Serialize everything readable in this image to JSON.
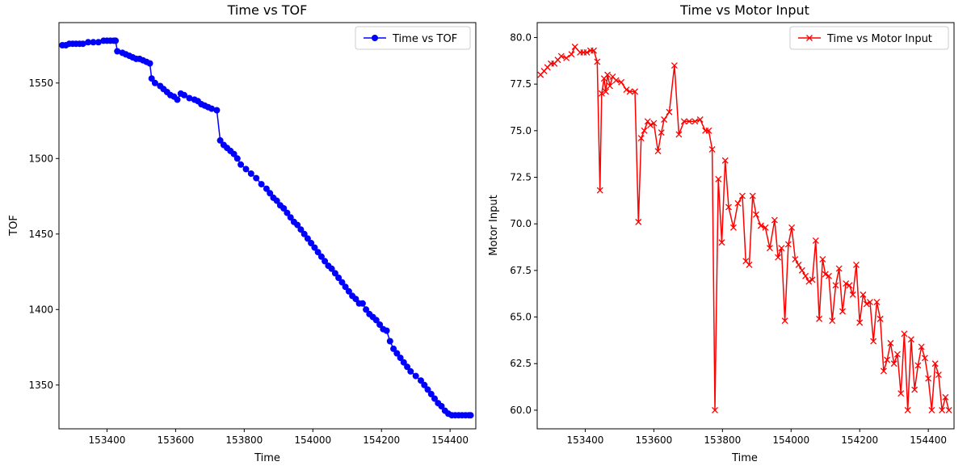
{
  "chart_data": [
    {
      "type": "line",
      "title": "Time vs TOF",
      "xlabel": "Time",
      "ylabel": "TOF",
      "xlim": [
        153260,
        154475
      ],
      "ylim": [
        1321,
        1590
      ],
      "xticks": [
        153400,
        153600,
        153800,
        154000,
        154200,
        154400
      ],
      "yticks": [
        1350,
        1400,
        1450,
        1500,
        1550
      ],
      "ytick_labels": [
        "1350",
        "1400",
        "1450",
        "1500",
        "1550"
      ],
      "grid": false,
      "legend_position": "top-right",
      "series": [
        {
          "name": "Time vs TOF",
          "color": "#0000ff",
          "marker": "circle",
          "x": [
            153270,
            153280,
            153290,
            153300,
            153310,
            153320,
            153330,
            153345,
            153360,
            153375,
            153390,
            153400,
            153410,
            153420,
            153425,
            153430,
            153445,
            153455,
            153465,
            153475,
            153485,
            153495,
            153505,
            153515,
            153525,
            153530,
            153540,
            153555,
            153565,
            153575,
            153585,
            153595,
            153605,
            153615,
            153625,
            153640,
            153655,
            153665,
            153675,
            153685,
            153695,
            153705,
            153720,
            153730,
            153740,
            153750,
            153760,
            153770,
            153780,
            153790,
            153805,
            153820,
            153835,
            153850,
            153865,
            153875,
            153885,
            153895,
            153905,
            153915,
            153925,
            153935,
            153945,
            153955,
            153965,
            153975,
            153985,
            153995,
            154005,
            154015,
            154025,
            154035,
            154045,
            154055,
            154065,
            154075,
            154085,
            154095,
            154105,
            154115,
            154125,
            154135,
            154145,
            154155,
            154165,
            154175,
            154185,
            154195,
            154205,
            154215,
            154225,
            154235,
            154245,
            154255,
            154265,
            154275,
            154285,
            154300,
            154315,
            154325,
            154335,
            154345,
            154355,
            154365,
            154375,
            154385,
            154395,
            154405,
            154415,
            154425,
            154435,
            154445,
            154455,
            154460
          ],
          "y": [
            1575,
            1575,
            1576,
            1576,
            1576,
            1576,
            1576,
            1577,
            1577,
            1577,
            1578,
            1578,
            1578,
            1578,
            1578,
            1571,
            1570,
            1569,
            1568,
            1567,
            1566,
            1566,
            1565,
            1564,
            1563,
            1553,
            1550,
            1548,
            1546,
            1544,
            1542,
            1541,
            1539,
            1543,
            1542,
            1540,
            1539,
            1538,
            1536,
            1535,
            1534,
            1533,
            1532,
            1512,
            1509,
            1507,
            1505,
            1503,
            1500,
            1496,
            1493,
            1490,
            1487,
            1483,
            1480,
            1477,
            1474,
            1472,
            1469,
            1467,
            1464,
            1461,
            1458,
            1456,
            1453,
            1450,
            1447,
            1444,
            1441,
            1438,
            1435,
            1432,
            1429,
            1427,
            1424,
            1421,
            1418,
            1415,
            1412,
            1409,
            1407,
            1404,
            1404,
            1400,
            1397,
            1395,
            1393,
            1390,
            1387,
            1386,
            1379,
            1374,
            1371,
            1368,
            1365,
            1362,
            1359,
            1356,
            1353,
            1350,
            1347,
            1344,
            1341,
            1338,
            1336,
            1333,
            1331,
            1330,
            1330,
            1330,
            1330,
            1330,
            1330,
            1330
          ]
        }
      ]
    },
    {
      "type": "line",
      "title": "Time vs Motor Input",
      "xlabel": "Time",
      "ylabel": "Motor Input",
      "xlim": [
        153260,
        154475
      ],
      "ylim": [
        59.0,
        80.8
      ],
      "xticks": [
        153400,
        153600,
        153800,
        154000,
        154200,
        154400
      ],
      "yticks": [
        60.0,
        62.5,
        65.0,
        67.5,
        70.0,
        72.5,
        75.0,
        77.5,
        80.0
      ],
      "ytick_labels": [
        "60.0",
        "62.5",
        "65.0",
        "67.5",
        "70.0",
        "72.5",
        "75.0",
        "77.5",
        "80.0"
      ],
      "grid": false,
      "legend_position": "top-right",
      "series": [
        {
          "name": "Time vs Motor Input",
          "color": "#ff0000",
          "marker": "x",
          "x": [
            153270,
            153280,
            153290,
            153300,
            153310,
            153320,
            153330,
            153345,
            153360,
            153370,
            153385,
            153395,
            153405,
            153415,
            153425,
            153435,
            153443,
            153448,
            153455,
            153460,
            153465,
            153472,
            153480,
            153490,
            153505,
            153520,
            153530,
            153545,
            153555,
            153563,
            153572,
            153582,
            153590,
            153600,
            153612,
            153622,
            153630,
            153645,
            153660,
            153673,
            153688,
            153703,
            153720,
            153735,
            153750,
            153760,
            153770,
            153778,
            153788,
            153798,
            153808,
            153818,
            153832,
            153845,
            153858,
            153868,
            153878,
            153888,
            153898,
            153912,
            153925,
            153938,
            153952,
            153962,
            153972,
            153982,
            153992,
            154002,
            154012,
            154022,
            154032,
            154042,
            154052,
            154062,
            154072,
            154082,
            154092,
            154100,
            154110,
            154120,
            154130,
            154140,
            154150,
            154160,
            154170,
            154180,
            154190,
            154200,
            154210,
            154220,
            154230,
            154240,
            154250,
            154260,
            154270,
            154280,
            154290,
            154300,
            154310,
            154320,
            154330,
            154340,
            154350,
            154360,
            154370,
            154380,
            154390,
            154400,
            154410,
            154420,
            154430,
            154440,
            154450,
            154460
          ],
          "y": [
            78.0,
            78.2,
            78.4,
            78.6,
            78.6,
            78.8,
            79.0,
            78.9,
            79.1,
            79.5,
            79.2,
            79.2,
            79.2,
            79.3,
            79.3,
            78.7,
            71.8,
            77.0,
            77.8,
            77.1,
            78.0,
            77.4,
            77.9,
            77.7,
            77.6,
            77.2,
            77.1,
            77.1,
            70.1,
            74.6,
            75.0,
            75.5,
            75.3,
            75.4,
            73.9,
            74.9,
            75.6,
            76.0,
            78.5,
            74.8,
            75.5,
            75.5,
            75.5,
            75.6,
            75.0,
            75.0,
            74.0,
            60.0,
            72.4,
            69.0,
            73.4,
            70.9,
            69.8,
            71.1,
            71.5,
            68.0,
            67.8,
            71.5,
            70.5,
            69.9,
            69.8,
            68.7,
            70.2,
            68.2,
            68.7,
            64.8,
            68.9,
            69.8,
            68.1,
            67.8,
            67.5,
            67.2,
            66.9,
            67.0,
            69.1,
            64.9,
            68.1,
            67.3,
            67.2,
            64.8,
            66.7,
            67.6,
            65.3,
            66.8,
            66.7,
            66.2,
            67.8,
            64.7,
            66.2,
            65.7,
            65.8,
            63.7,
            65.8,
            64.9,
            62.1,
            62.7,
            63.6,
            62.5,
            63.0,
            60.9,
            64.1,
            60.0,
            63.8,
            61.1,
            62.4,
            63.4,
            62.8,
            61.7,
            60.0,
            62.5,
            61.9,
            60.0,
            60.7,
            60.0
          ]
        }
      ]
    }
  ]
}
